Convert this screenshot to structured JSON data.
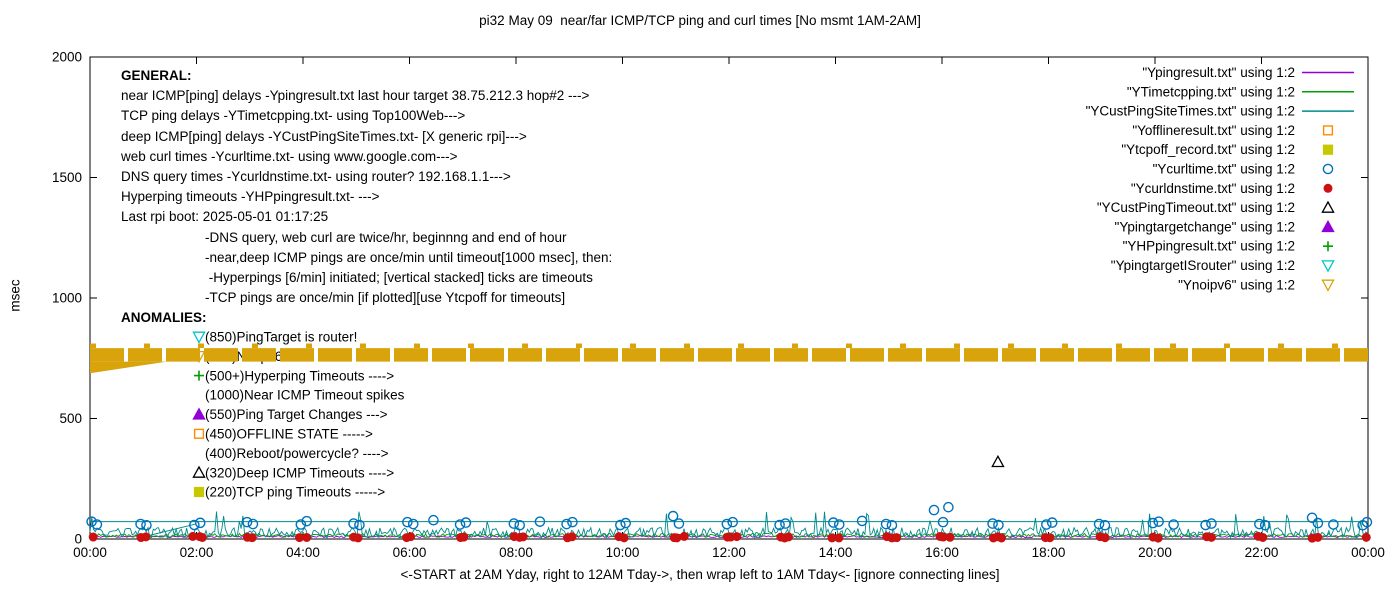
{
  "title": "pi32 May 09  near/far ICMP/TCP ping and curl times [No msmt 1AM-2AM]",
  "colors": {
    "purple": "#9400D3",
    "green": "#00A000",
    "teal": "#008B8B",
    "orange": "#FF8C00",
    "yellow": "#C8C800",
    "blue": "#0072BD",
    "red": "#CC1111",
    "black": "#000000",
    "violet": "#9400D3",
    "cyan": "#00C5CD",
    "gold": "#D9A40B"
  },
  "axes": {
    "ylabel": "msec",
    "xlabel": "<-START at 2AM Yday, right to 12AM Tday->, then wrap left to 1AM Tday<- [ignore connecting lines]",
    "ylim": [
      0,
      2000
    ],
    "xlim_hours": [
      0,
      24
    ],
    "yticks": [
      0,
      500,
      1000,
      1500,
      2000
    ],
    "xticks": [
      {
        "h": 0,
        "label": "00:00"
      },
      {
        "h": 2,
        "label": "02:00"
      },
      {
        "h": 4,
        "label": "04:00"
      },
      {
        "h": 6,
        "label": "06:00"
      },
      {
        "h": 8,
        "label": "08:00"
      },
      {
        "h": 10,
        "label": "10:00"
      },
      {
        "h": 12,
        "label": "12:00"
      },
      {
        "h": 14,
        "label": "14:00"
      },
      {
        "h": 16,
        "label": "16:00"
      },
      {
        "h": 18,
        "label": "18:00"
      },
      {
        "h": 20,
        "label": "20:00"
      },
      {
        "h": 22,
        "label": "22:00"
      },
      {
        "h": 24,
        "label": "00:00"
      }
    ]
  },
  "legend": [
    {
      "label": "\"Ypingresult.txt\" using 1:2",
      "sample": "line",
      "color": "purple"
    },
    {
      "label": "\"YTimetcpping.txt\" using 1:2",
      "sample": "line",
      "color": "green"
    },
    {
      "label": "\"YCustPingSiteTimes.txt\" using 1:2",
      "sample": "line",
      "color": "teal"
    },
    {
      "label": "\"Yofflineresult.txt\" using 1:2",
      "sample": "square-open",
      "color": "orange"
    },
    {
      "label": "\"Ytcpoff_record.txt\" using 1:2",
      "sample": "square-filled",
      "color": "yellow"
    },
    {
      "label": "\"Ycurltime.txt\" using 1:2",
      "sample": "circle-open",
      "color": "blue"
    },
    {
      "label": "\"Ycurldnstime.txt\" using 1:2",
      "sample": "circle-filled",
      "color": "red"
    },
    {
      "label": "\"YCustPingTimeout.txt\" using 1:2",
      "sample": "triangle-up-open",
      "color": "black"
    },
    {
      "label": "\"Ypingtargetchange\" using 1:2",
      "sample": "triangle-up-filled",
      "color": "violet"
    },
    {
      "label": "\"YHPpingresult.txt\" using 1:2",
      "sample": "plus",
      "color": "green"
    },
    {
      "label": "\"YpingtargetISrouter\" using 1:2",
      "sample": "triangle-down-open",
      "color": "cyan"
    },
    {
      "label": "\"Ynoipv6\" using 1:2",
      "sample": "triangle-down-open",
      "color": "gold"
    }
  ],
  "general": {
    "heading": "GENERAL:",
    "lines": [
      "near ICMP[ping] delays -Ypingresult.txt last hour target 38.75.212.3 hop#2 --->",
      "TCP ping delays -YTimetcpping.txt- using Top100Web--->",
      "deep ICMP[ping] delays -YCustPingSiteTimes.txt- [X generic rpi]--->",
      "web curl times -Ycurltime.txt- using www.google.com--->",
      "DNS query times -Ycurldnstime.txt- using router? 192.168.1.1--->",
      "Hyperping timeouts -YHPpingresult.txt- --->",
      "Last rpi boot: 2025-05-01 01:17:25"
    ],
    "notes": [
      "-DNS query, web curl are twice/hr, beginnng and end of hour",
      "-near,deep ICMP pings are once/min until timeout[1000 msec], then:",
      " -Hyperpings [6/min] initiated; [vertical stacked] ticks are timeouts",
      "-TCP pings are once/min [if plotted][use Ytcpoff for timeouts]"
    ]
  },
  "anomalies": {
    "heading": "ANOMALIES:",
    "items": [
      {
        "label": "(850)PingTarget is router!",
        "marker": "triangle-down-open",
        "color": "cyan"
      },
      {
        "label": "(785)No ipv6 ---->",
        "marker": "triangle-down-open",
        "color": "gold"
      },
      {
        "label": "(500+)Hyperping Timeouts ---->",
        "marker": "plus",
        "color": "green"
      },
      {
        "label": "(1000)Near ICMP Timeout spikes",
        "marker": "none",
        "color": "black"
      },
      {
        "label": "(550)Ping Target Changes --->",
        "marker": "triangle-up-filled",
        "color": "violet"
      },
      {
        "label": "(450)OFFLINE STATE ----->",
        "marker": "square-open",
        "color": "orange"
      },
      {
        "label": "(400)Reboot/powercycle? ---->",
        "marker": "none",
        "color": "black"
      },
      {
        "label": "(320)Deep ICMP Timeouts ---->",
        "marker": "triangle-up-open",
        "color": "black"
      },
      {
        "label": "(220)TCP ping Timeouts ----->",
        "marker": "square-filled",
        "color": "yellow"
      }
    ]
  },
  "chart_data": {
    "type": "line",
    "title": "pi32 May 09  near/far ICMP/TCP ping and curl times [No msmt 1AM-2AM]",
    "xlabel": "time of day, hours 0-24 (wrapped: starts 2AM yesterday)",
    "ylabel": "msec",
    "ylim": [
      0,
      2000
    ],
    "xlim": [
      0,
      24
    ],
    "grid": false,
    "legend_position": "top-right",
    "series": [
      {
        "id": "ypingresult-near-icmp",
        "style": "noise-line",
        "layer": 1,
        "color": "purple",
        "base": 9,
        "amp": 8,
        "seed": 11
      },
      {
        "id": "ytimetcpping-tcp-ping",
        "style": "noise-line",
        "layer": 1,
        "color": "green",
        "base": 13,
        "amp": 16,
        "seed": 22
      },
      {
        "id": "ycustpingsitetimes-deep-icmp",
        "style": "noise-line",
        "layer": 1,
        "color": "teal",
        "base": 20,
        "amp": 42,
        "seed": 33,
        "spike_chance": 0.035,
        "spike_level": 92
      },
      {
        "id": "deep-icmp-upper-bound",
        "style": "hline",
        "layer": 1,
        "color": "teal",
        "y": 72
      },
      {
        "id": "gap-connecting-line",
        "style": "segment",
        "layer": 1,
        "color": "teal",
        "from": [
          1.02,
          10
        ],
        "to": [
          1.98,
          62
        ]
      },
      {
        "id": "ynoipv6-band",
        "style": "band",
        "layer": 2,
        "color": "gold",
        "y_top": 792,
        "y_bottom": 736,
        "dash_y": 802,
        "wedge": [
          [
            0,
            736
          ],
          [
            1.45,
            736
          ],
          [
            0,
            688
          ]
        ]
      },
      {
        "id": "ycurltime-web-curl",
        "style": "points",
        "layer": 3,
        "marker": "circle-open",
        "color": "blue",
        "points": [
          [
            0.03,
            72
          ],
          [
            0.13,
            60
          ],
          [
            0.95,
            62
          ],
          [
            1.06,
            57
          ],
          [
            1.96,
            58
          ],
          [
            2.07,
            67
          ],
          [
            2.95,
            70
          ],
          [
            3.06,
            62
          ],
          [
            3.96,
            60
          ],
          [
            4.07,
            74
          ],
          [
            4.95,
            64
          ],
          [
            5.06,
            58
          ],
          [
            5.96,
            70
          ],
          [
            6.07,
            62
          ],
          [
            6.45,
            78
          ],
          [
            6.95,
            60
          ],
          [
            7.06,
            68
          ],
          [
            7.96,
            64
          ],
          [
            8.07,
            57
          ],
          [
            8.45,
            72
          ],
          [
            8.95,
            62
          ],
          [
            9.06,
            70
          ],
          [
            9.96,
            58
          ],
          [
            10.06,
            66
          ],
          [
            10.95,
            95
          ],
          [
            11.06,
            64
          ],
          [
            11.96,
            62
          ],
          [
            12.07,
            70
          ],
          [
            12.95,
            58
          ],
          [
            13.06,
            64
          ],
          [
            13.96,
            68
          ],
          [
            14.07,
            60
          ],
          [
            14.5,
            75
          ],
          [
            14.95,
            62
          ],
          [
            15.06,
            57
          ],
          [
            15.85,
            120
          ],
          [
            16.02,
            70
          ],
          [
            16.12,
            132
          ],
          [
            16.95,
            64
          ],
          [
            17.06,
            58
          ],
          [
            17.96,
            60
          ],
          [
            18.07,
            68
          ],
          [
            18.95,
            62
          ],
          [
            19.06,
            57
          ],
          [
            19.96,
            66
          ],
          [
            20.07,
            72
          ],
          [
            20.35,
            60
          ],
          [
            20.95,
            58
          ],
          [
            21.06,
            64
          ],
          [
            21.96,
            62
          ],
          [
            22.07,
            57
          ],
          [
            22.95,
            88
          ],
          [
            23.06,
            66
          ],
          [
            23.35,
            60
          ],
          [
            23.9,
            57
          ],
          [
            23.98,
            70
          ]
        ]
      },
      {
        "id": "ycurldnstime-dns",
        "style": "hour-pair-points",
        "layer": 3,
        "marker": "circle-filled",
        "color": "red",
        "hours": [
          0,
          1,
          2,
          3,
          4,
          5,
          6,
          7,
          8,
          9,
          10,
          11,
          12,
          13,
          14,
          15,
          16,
          17,
          18,
          19,
          20,
          21,
          22,
          23,
          24
        ],
        "y_base": 7,
        "y_jitter": 8,
        "seed": 44
      },
      {
        "id": "ycustpingtimeout-deep-icmp-timeout",
        "style": "points",
        "layer": 3,
        "marker": "triangle-up-open",
        "color": "black",
        "points": [
          [
            17.05,
            320
          ]
        ]
      }
    ]
  }
}
